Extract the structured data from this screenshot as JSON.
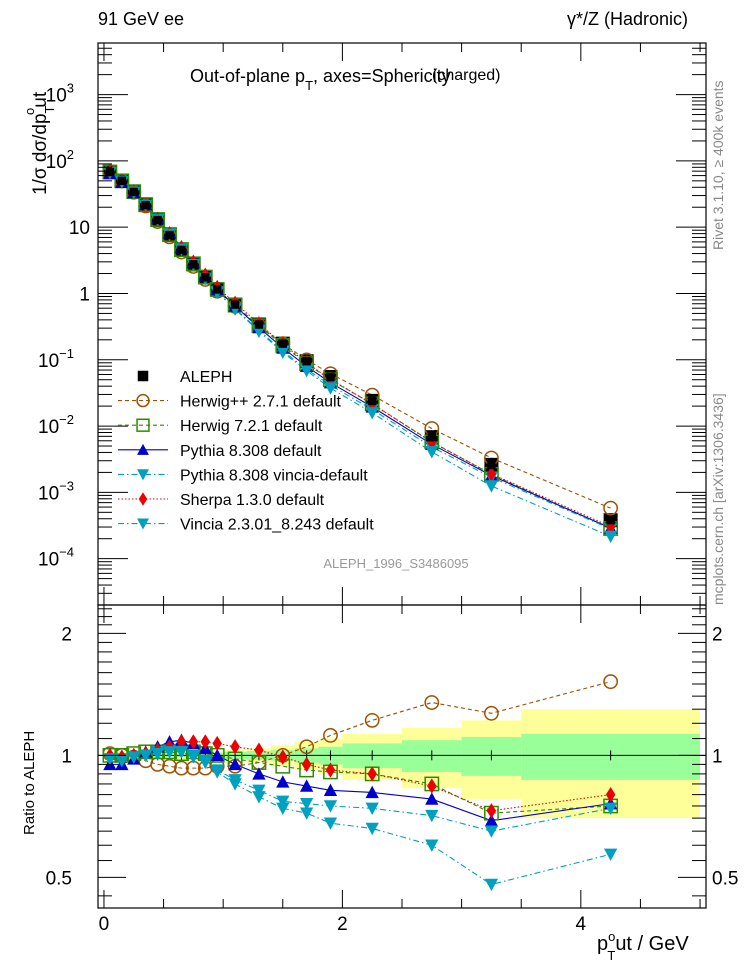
{
  "header": {
    "left": "91 GeV ee",
    "right": "γ*/Z (Hadronic)"
  },
  "side_text": {
    "rivet": "Rivet 3.1.10, ≥ 400k events",
    "mcplots": "mcplots.cern.ch [arXiv:1306.3436]"
  },
  "chart_data": {
    "type": "scatter",
    "title": "Out-of-plane p_T, axes=Sphericity (charged)",
    "title_main": "Out-of-plane p",
    "title_sub": "T",
    "title_rest": ", axes=Sphericity",
    "title_tag": "(charged)",
    "analysis_id": "ALEPH_1996_S3486095",
    "xlabel": "p_T^out / GeV",
    "xlabel_parts": {
      "p": "p",
      "sup": "o",
      "sub": "T",
      "rest": "ut / GeV"
    },
    "ylabel": "1/σ dσ/dp_T^out",
    "ylabel_main": "1/σ dσ/dp",
    "ylabel_sub": "T",
    "ylabel_sup": "o",
    "ylabel_rest": "ut",
    "ratio_ylabel": "Ratio to ALEPH",
    "xlim": [
      -0.05,
      5.05
    ],
    "ylim": [
      2e-05,
      6000
    ],
    "yscale": "log",
    "ratio_ylim": [
      0.42,
      2.35
    ],
    "ratio_yscale": "log",
    "x_ticks": [
      0,
      2,
      4
    ],
    "x_tick_labels": [
      "0",
      "2",
      "4"
    ],
    "y_ticks": [
      0.0001,
      0.001,
      0.01,
      0.1,
      1,
      10,
      100,
      1000
    ],
    "y_tick_labels": [
      {
        "base": "10",
        "exp": "−4"
      },
      {
        "base": "10",
        "exp": "−3"
      },
      {
        "base": "10",
        "exp": "−2"
      },
      {
        "base": "10",
        "exp": "−1"
      },
      {
        "base": "1",
        "exp": ""
      },
      {
        "base": "10",
        "exp": ""
      },
      {
        "base": "10",
        "exp": "2"
      },
      {
        "base": "10",
        "exp": "3"
      }
    ],
    "ratio_y_ticks": [
      0.5,
      1,
      2
    ],
    "ratio_y_tick_labels": [
      "0.5",
      "1",
      "2"
    ],
    "legend_position": "middle-left",
    "x": [
      0.05,
      0.15,
      0.25,
      0.35,
      0.45,
      0.55,
      0.65,
      0.75,
      0.85,
      0.95,
      1.1,
      1.3,
      1.5,
      1.7,
      1.9,
      2.25,
      2.75,
      3.25,
      4.25
    ],
    "bin_edges": [
      0.0,
      0.1,
      0.2,
      0.3,
      0.4,
      0.5,
      0.6,
      0.7,
      0.8,
      0.9,
      1.0,
      1.2,
      1.4,
      1.6,
      1.8,
      2.0,
      2.5,
      3.0,
      3.5,
      5.0
    ],
    "band_inner": [
      0.01,
      0.01,
      0.01,
      0.01,
      0.01,
      0.01,
      0.01,
      0.01,
      0.015,
      0.015,
      0.02,
      0.025,
      0.03,
      0.04,
      0.05,
      0.07,
      0.09,
      0.11,
      0.13
    ],
    "band_outer": [
      0.02,
      0.02,
      0.02,
      0.02,
      0.02,
      0.02,
      0.02,
      0.02,
      0.025,
      0.025,
      0.03,
      0.04,
      0.06,
      0.08,
      0.1,
      0.13,
      0.17,
      0.22,
      0.3
    ],
    "series": [
      {
        "name": "ALEPH",
        "color": "#000000",
        "marker": "square-filled",
        "line": "none",
        "values": [
          68,
          50,
          34,
          21.5,
          12.8,
          7.6,
          4.55,
          2.75,
          1.75,
          1.15,
          0.68,
          0.34,
          0.175,
          0.095,
          0.055,
          0.024,
          0.0068,
          0.0026,
          0.00038
        ]
      },
      {
        "name": "Herwig++ 2.7.1 default",
        "color": "#a05000",
        "marker": "circle-open",
        "line": "dashed",
        "ratio": [
          1.01,
          1.0,
          0.99,
          0.97,
          0.95,
          0.94,
          0.93,
          0.93,
          0.93,
          0.94,
          0.94,
          0.96,
          1.0,
          1.05,
          1.12,
          1.22,
          1.35,
          1.27,
          1.52
        ]
      },
      {
        "name": "Herwig 7.2.1 default",
        "color": "#2e8b00",
        "marker": "square-open",
        "line": "dashed",
        "ratio": [
          1.0,
          1.0,
          1.01,
          1.02,
          1.02,
          1.02,
          1.01,
          1.02,
          1.01,
          1.0,
          0.98,
          0.96,
          0.94,
          0.92,
          0.91,
          0.9,
          0.85,
          0.72,
          0.75
        ]
      },
      {
        "name": "Pythia 8.308 default",
        "color": "#0000cc",
        "marker": "triangle-up",
        "line": "solid",
        "ratio": [
          0.95,
          0.95,
          0.98,
          1.02,
          1.05,
          1.08,
          1.09,
          1.07,
          1.04,
          1.0,
          0.95,
          0.9,
          0.86,
          0.84,
          0.82,
          0.81,
          0.78,
          0.69,
          0.76
        ]
      },
      {
        "name": "Pythia 8.308 vincia-default",
        "color": "#00a0c0",
        "marker": "triangle-down",
        "line": "dashdot",
        "ratio": [
          0.98,
          0.98,
          0.99,
          1.0,
          1.02,
          1.03,
          1.02,
          1.0,
          0.97,
          0.92,
          0.87,
          0.82,
          0.77,
          0.76,
          0.75,
          0.74,
          0.71,
          0.65,
          0.74
        ]
      },
      {
        "name": "Sherpa 1.3.0 default",
        "color": "#ee0000",
        "marker": "diamond",
        "line": "dotted",
        "ratio": [
          1.0,
          0.99,
          1.0,
          1.01,
          1.03,
          1.05,
          1.08,
          1.08,
          1.08,
          1.07,
          1.05,
          1.03,
          0.99,
          0.95,
          0.92,
          0.9,
          0.84,
          0.73,
          0.8
        ]
      },
      {
        "name": "Vincia 2.3.01_8.243 default",
        "color": "#00a0c0",
        "marker": "triangle-down",
        "line": "dashdot",
        "ratio": [
          0.98,
          0.97,
          0.99,
          1.0,
          1.01,
          1.02,
          1.02,
          0.99,
          0.96,
          0.91,
          0.85,
          0.79,
          0.74,
          0.72,
          0.68,
          0.66,
          0.6,
          0.48,
          0.57
        ]
      }
    ]
  }
}
